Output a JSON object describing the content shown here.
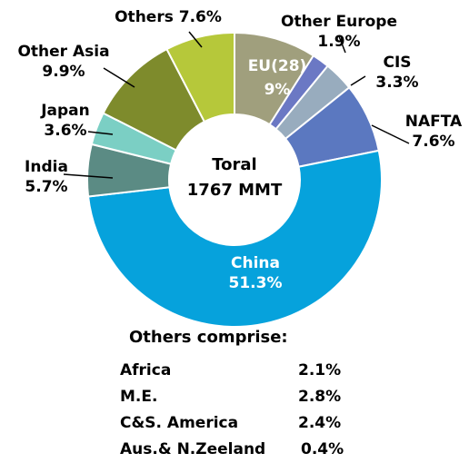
{
  "chart_data": {
    "type": "pie",
    "variant": "donut",
    "center_text": [
      "Toral",
      "1767 MMT"
    ],
    "slices": [
      {
        "label": "EU(28)",
        "value": 9,
        "value_text": "9%",
        "color": "#a09f7d"
      },
      {
        "label": "Other Europe",
        "value": 1.9,
        "value_text": "1.9%",
        "color": "#6b78c4"
      },
      {
        "label": "CIS",
        "value": 3.3,
        "value_text": "3.3%",
        "color": "#98acbe"
      },
      {
        "label": "NAFTA",
        "value": 7.6,
        "value_text": "7.6%",
        "color": "#5b78c0"
      },
      {
        "label": "China",
        "value": 51.3,
        "value_text": "51.3%",
        "color": "#06a2dc"
      },
      {
        "label": "India",
        "value": 5.7,
        "value_text": "5.7%",
        "color": "#5b8b84"
      },
      {
        "label": "Japan",
        "value": 3.6,
        "value_text": "3.6%",
        "color": "#7bcfc4"
      },
      {
        "label": "Other Asia",
        "value": 9.9,
        "value_text": "9.9%",
        "color": "#7e8b2c"
      },
      {
        "label": "Others",
        "value": 7.6,
        "value_text": "7.6%",
        "color": "#b6c83a"
      }
    ],
    "others_breakdown": {
      "title": "Others comprise:",
      "items": [
        {
          "label": "Africa",
          "value_text": "2.1%",
          "value": 2.1
        },
        {
          "label": "M.E.",
          "value_text": "2.8%",
          "value": 2.8
        },
        {
          "label": "C&S. America",
          "value_text": "2.4%",
          "value": 2.4
        },
        {
          "label": "Aus.& N.Zeeland",
          "value_text": "0.4%",
          "value": 0.4
        }
      ]
    }
  }
}
